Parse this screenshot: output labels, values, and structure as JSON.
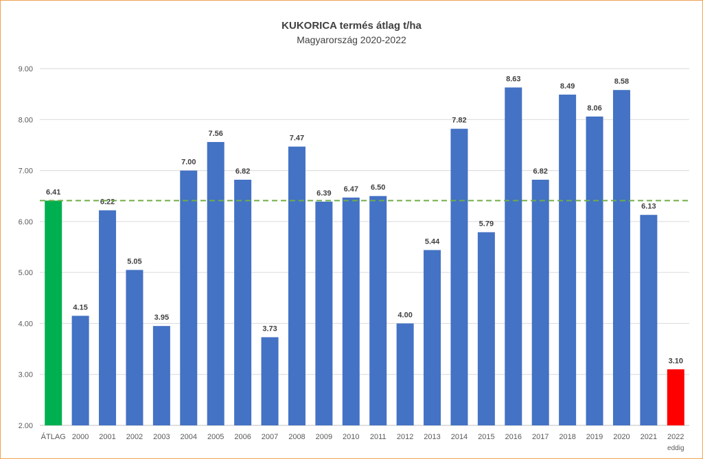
{
  "chart_data": {
    "type": "bar",
    "title": "KUKORICA termés átlag t/ha",
    "subtitle": "Magyarország 2020-2022",
    "categories": [
      "ÁTLAG",
      "2000",
      "2001",
      "2002",
      "2003",
      "2004",
      "2005",
      "2006",
      "2007",
      "2008",
      "2009",
      "2010",
      "2011",
      "2012",
      "2013",
      "2014",
      "2015",
      "2016",
      "2017",
      "2018",
      "2019",
      "2020",
      "2021",
      "2022"
    ],
    "category_sublabels": {
      "2022": "eddig"
    },
    "values": [
      6.41,
      4.15,
      6.22,
      5.05,
      3.95,
      7.0,
      7.56,
      6.82,
      3.73,
      7.47,
      6.39,
      6.47,
      6.5,
      4.0,
      5.44,
      7.82,
      5.79,
      8.63,
      6.82,
      8.49,
      8.06,
      8.58,
      6.13,
      3.1
    ],
    "value_labels": [
      "6.41",
      "4.15",
      "6.22",
      "5.05",
      "3.95",
      "7.00",
      "7.56",
      "6.82",
      "3.73",
      "7.47",
      "6.39",
      "6.47",
      "6.50",
      "4.00",
      "5.44",
      "7.82",
      "5.79",
      "8.63",
      "6.82",
      "8.49",
      "8.06",
      "8.58",
      "6.13",
      "3.10"
    ],
    "bar_colors": {
      "default": "#4472c4",
      "ÁTLAG": "#00b050",
      "2022": "#ff0000"
    },
    "average_line": {
      "value": 6.41,
      "color": "#70ad47",
      "style": "dashed"
    },
    "ylim": [
      2.0,
      9.0
    ],
    "yticks": [
      "2.00",
      "3.00",
      "4.00",
      "5.00",
      "6.00",
      "7.00",
      "8.00",
      "9.00"
    ],
    "xlabel": "",
    "ylabel": "",
    "grid": true,
    "legend": "none"
  }
}
